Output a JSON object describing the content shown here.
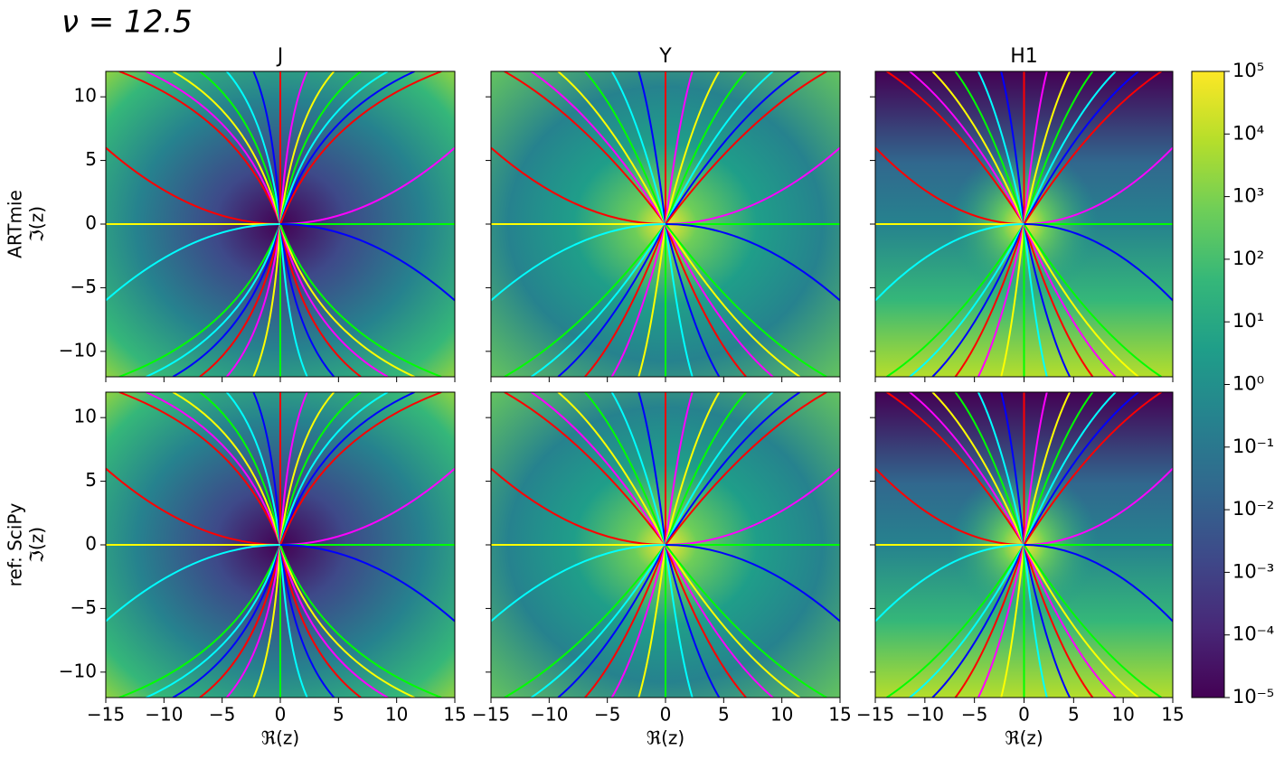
{
  "chart_data": {
    "type": "heatmap",
    "title": "ν = 12.5",
    "columns": [
      "J",
      "Y",
      "H1"
    ],
    "rows": [
      "ARTmie",
      "ref: SciPy"
    ],
    "xlabel": "ℜ(z)",
    "ylabel": "ℑ(z)",
    "xlim": [
      -15,
      15
    ],
    "xticks": [
      {
        "value": -15,
        "label": "−15"
      },
      {
        "value": -10,
        "label": "−10"
      },
      {
        "value": -5,
        "label": "−5"
      },
      0,
      5,
      10,
      15
    ],
    "ylim": [
      -12,
      12
    ],
    "yticks": [
      {
        "value": -10,
        "label": "−10"
      },
      {
        "value": -5,
        "label": "−5"
      },
      0,
      5,
      10
    ],
    "colorbar": {
      "scale": "log",
      "colormap": [
        "#440154",
        "#482878",
        "#3e4989",
        "#31688e",
        "#26828e",
        "#1f9e89",
        "#35b779",
        "#6ece58",
        "#b5de2b",
        "#fde725"
      ],
      "lim": [
        1e-05,
        100000
      ],
      "ticks": [
        {
          "value": 1e-05,
          "label": "10⁻⁵"
        },
        {
          "value": 0.0001,
          "label": "10⁻⁴"
        },
        {
          "value": 0.001,
          "label": "10⁻³"
        },
        {
          "value": 0.01,
          "label": "10⁻²"
        },
        {
          "value": 0.1,
          "label": "10⁻¹"
        },
        {
          "value": 1,
          "label": "10⁰"
        },
        {
          "value": 10,
          "label": "10¹"
        },
        {
          "value": 100,
          "label": "10²"
        },
        {
          "value": 1000,
          "label": "10³"
        },
        {
          "value": 10000,
          "label": "10⁴"
        },
        {
          "value": 100000,
          "label": "10⁵"
        }
      ]
    }
  }
}
